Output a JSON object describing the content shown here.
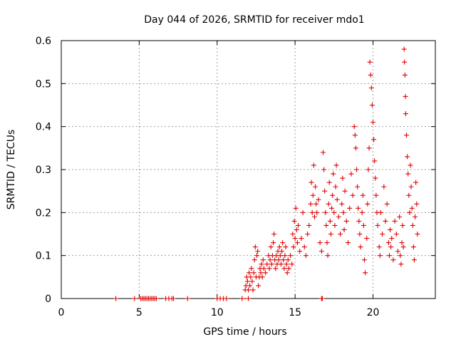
{
  "chart_data": {
    "type": "scatter",
    "title": "Day 044 of 2026, SRMTID for receiver mdo1",
    "xlabel": "GPS time / hours",
    "ylabel": "SRMTID / TECUs",
    "xlim": [
      0,
      24
    ],
    "ylim": [
      0,
      0.6
    ],
    "x_ticks": [
      0,
      5,
      10,
      15,
      20
    ],
    "x_tick_labels": [
      "0",
      "5",
      "10",
      "15",
      "20"
    ],
    "y_ticks": [
      0,
      0.1,
      0.2,
      0.3,
      0.4,
      0.5,
      0.6
    ],
    "y_tick_labels": [
      "0",
      "0.1",
      "0.2",
      "0.3",
      "0.4",
      "0.5",
      "0.6"
    ],
    "grid": true,
    "marker": "+",
    "series": [
      {
        "name": "SRMTID",
        "color": "#e00000",
        "points": [
          [
            3.5,
            0
          ],
          [
            4.7,
            0
          ],
          [
            5.1,
            0
          ],
          [
            5.2,
            0
          ],
          [
            5.3,
            0
          ],
          [
            5.4,
            0
          ],
          [
            5.5,
            0
          ],
          [
            5.6,
            0
          ],
          [
            5.7,
            0
          ],
          [
            5.8,
            0
          ],
          [
            5.9,
            0
          ],
          [
            6.0,
            0
          ],
          [
            6.1,
            0
          ],
          [
            6.7,
            0
          ],
          [
            6.9,
            0
          ],
          [
            7.1,
            0
          ],
          [
            7.2,
            0
          ],
          [
            8.1,
            0
          ],
          [
            10.0,
            0
          ],
          [
            10.2,
            0
          ],
          [
            10.4,
            0
          ],
          [
            10.6,
            0
          ],
          [
            11.6,
            0
          ],
          [
            12.0,
            0
          ],
          [
            16.7,
            0
          ],
          [
            16.75,
            0
          ],
          [
            11.8,
            0.02
          ],
          [
            11.85,
            0.03
          ],
          [
            11.9,
            0.05
          ],
          [
            11.95,
            0.04
          ],
          [
            12.0,
            0.02
          ],
          [
            12.05,
            0.06
          ],
          [
            12.1,
            0.03
          ],
          [
            12.15,
            0.05
          ],
          [
            12.2,
            0.07
          ],
          [
            12.25,
            0.04
          ],
          [
            12.3,
            0.02
          ],
          [
            12.35,
            0.06
          ],
          [
            12.4,
            0.09
          ],
          [
            12.45,
            0.12
          ],
          [
            12.5,
            0.05
          ],
          [
            12.55,
            0.1
          ],
          [
            12.6,
            0.11
          ],
          [
            12.65,
            0.03
          ],
          [
            12.7,
            0.05
          ],
          [
            12.75,
            0.07
          ],
          [
            12.8,
            0.06
          ],
          [
            12.85,
            0.08
          ],
          [
            12.9,
            0.05
          ],
          [
            12.95,
            0.09
          ],
          [
            13.0,
            0.07
          ],
          [
            13.1,
            0.06
          ],
          [
            13.2,
            0.08
          ],
          [
            13.3,
            0.1
          ],
          [
            13.35,
            0.07
          ],
          [
            13.4,
            0.09
          ],
          [
            13.45,
            0.12
          ],
          [
            13.5,
            0.08
          ],
          [
            13.55,
            0.1
          ],
          [
            13.6,
            0.13
          ],
          [
            13.65,
            0.15
          ],
          [
            13.7,
            0.09
          ],
          [
            13.75,
            0.07
          ],
          [
            13.8,
            0.1
          ],
          [
            13.85,
            0.08
          ],
          [
            13.9,
            0.11
          ],
          [
            13.95,
            0.09
          ],
          [
            14.0,
            0.12
          ],
          [
            14.05,
            0.1
          ],
          [
            14.1,
            0.08
          ],
          [
            14.15,
            0.11
          ],
          [
            14.2,
            0.13
          ],
          [
            14.25,
            0.09
          ],
          [
            14.3,
            0.07
          ],
          [
            14.35,
            0.1
          ],
          [
            14.4,
            0.12
          ],
          [
            14.45,
            0.08
          ],
          [
            14.5,
            0.06
          ],
          [
            14.55,
            0.09
          ],
          [
            14.6,
            0.07
          ],
          [
            14.7,
            0.1
          ],
          [
            14.8,
            0.08
          ],
          [
            14.85,
            0.15
          ],
          [
            14.9,
            0.12
          ],
          [
            14.95,
            0.18
          ],
          [
            15.0,
            0.14
          ],
          [
            15.05,
            0.21
          ],
          [
            15.1,
            0.16
          ],
          [
            15.15,
            0.13
          ],
          [
            15.2,
            0.17
          ],
          [
            15.3,
            0.11
          ],
          [
            15.4,
            0.14
          ],
          [
            15.5,
            0.2
          ],
          [
            15.6,
            0.12
          ],
          [
            15.7,
            0.1
          ],
          [
            15.8,
            0.15
          ],
          [
            15.9,
            0.17
          ],
          [
            16.0,
            0.22
          ],
          [
            16.05,
            0.27
          ],
          [
            16.1,
            0.2
          ],
          [
            16.15,
            0.24
          ],
          [
            16.2,
            0.31
          ],
          [
            16.25,
            0.19
          ],
          [
            16.3,
            0.26
          ],
          [
            16.35,
            0.22
          ],
          [
            16.4,
            0.2
          ],
          [
            16.5,
            0.23
          ],
          [
            16.6,
            0.13
          ],
          [
            16.7,
            0.11
          ],
          [
            16.8,
            0.34
          ],
          [
            16.85,
            0.3
          ],
          [
            16.9,
            0.25
          ],
          [
            16.95,
            0.2
          ],
          [
            17.0,
            0.17
          ],
          [
            17.05,
            0.13
          ],
          [
            17.1,
            0.1
          ],
          [
            17.15,
            0.22
          ],
          [
            17.2,
            0.27
          ],
          [
            17.25,
            0.18
          ],
          [
            17.3,
            0.15
          ],
          [
            17.35,
            0.21
          ],
          [
            17.4,
            0.24
          ],
          [
            17.45,
            0.29
          ],
          [
            17.5,
            0.2
          ],
          [
            17.55,
            0.17
          ],
          [
            17.6,
            0.26
          ],
          [
            17.65,
            0.31
          ],
          [
            17.7,
            0.23
          ],
          [
            17.8,
            0.19
          ],
          [
            17.9,
            0.15
          ],
          [
            18.0,
            0.22
          ],
          [
            18.05,
            0.28
          ],
          [
            18.1,
            0.2
          ],
          [
            18.15,
            0.16
          ],
          [
            18.2,
            0.25
          ],
          [
            18.3,
            0.18
          ],
          [
            18.4,
            0.13
          ],
          [
            18.5,
            0.21
          ],
          [
            18.6,
            0.29
          ],
          [
            18.7,
            0.24
          ],
          [
            18.8,
            0.4
          ],
          [
            18.85,
            0.38
          ],
          [
            18.9,
            0.35
          ],
          [
            18.95,
            0.3
          ],
          [
            19.0,
            0.26
          ],
          [
            19.05,
            0.21
          ],
          [
            19.1,
            0.18
          ],
          [
            19.15,
            0.15
          ],
          [
            19.2,
            0.12
          ],
          [
            19.3,
            0.2
          ],
          [
            19.35,
            0.24
          ],
          [
            19.4,
            0.17
          ],
          [
            19.45,
            0.09
          ],
          [
            19.5,
            0.06
          ],
          [
            19.6,
            0.14
          ],
          [
            19.65,
            0.22
          ],
          [
            19.7,
            0.3
          ],
          [
            19.75,
            0.35
          ],
          [
            19.8,
            0.55
          ],
          [
            19.85,
            0.52
          ],
          [
            19.9,
            0.49
          ],
          [
            19.95,
            0.45
          ],
          [
            20.0,
            0.41
          ],
          [
            20.05,
            0.37
          ],
          [
            20.1,
            0.32
          ],
          [
            20.15,
            0.28
          ],
          [
            20.2,
            0.24
          ],
          [
            20.25,
            0.2
          ],
          [
            20.3,
            0.17
          ],
          [
            20.4,
            0.12
          ],
          [
            20.45,
            0.1
          ],
          [
            20.5,
            0.2
          ],
          [
            20.6,
            0.15
          ],
          [
            20.7,
            0.26
          ],
          [
            20.8,
            0.18
          ],
          [
            20.9,
            0.22
          ],
          [
            21.0,
            0.13
          ],
          [
            21.05,
            0.1
          ],
          [
            21.1,
            0.16
          ],
          [
            21.15,
            0.12
          ],
          [
            21.2,
            0.14
          ],
          [
            21.3,
            0.09
          ],
          [
            21.4,
            0.18
          ],
          [
            21.5,
            0.15
          ],
          [
            21.6,
            0.11
          ],
          [
            21.7,
            0.19
          ],
          [
            21.75,
            0.1
          ],
          [
            21.8,
            0.08
          ],
          [
            21.85,
            0.13
          ],
          [
            21.9,
            0.17
          ],
          [
            21.95,
            0.12
          ],
          [
            22.0,
            0.58
          ],
          [
            22.02,
            0.55
          ],
          [
            22.05,
            0.52
          ],
          [
            22.08,
            0.47
          ],
          [
            22.1,
            0.43
          ],
          [
            22.15,
            0.38
          ],
          [
            22.2,
            0.33
          ],
          [
            22.25,
            0.29
          ],
          [
            22.3,
            0.24
          ],
          [
            22.35,
            0.2
          ],
          [
            22.4,
            0.31
          ],
          [
            22.45,
            0.26
          ],
          [
            22.5,
            0.21
          ],
          [
            22.55,
            0.17
          ],
          [
            22.6,
            0.12
          ],
          [
            22.65,
            0.09
          ],
          [
            22.7,
            0.19
          ],
          [
            22.75,
            0.27
          ],
          [
            22.8,
            0.22
          ],
          [
            22.85,
            0.15
          ]
        ]
      }
    ]
  }
}
